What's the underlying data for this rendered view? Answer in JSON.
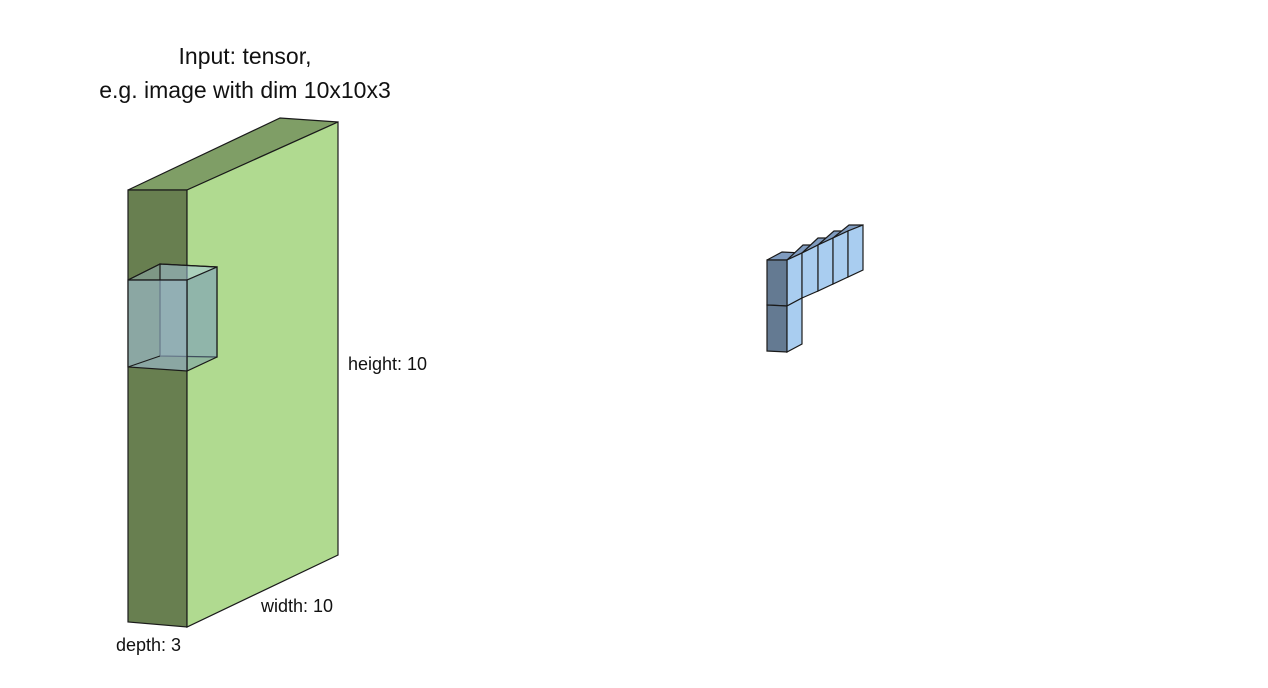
{
  "title": {
    "line1": "Input: tensor,",
    "line2": "e.g. image with dim 10x10x3"
  },
  "labels": {
    "height": "height: 10",
    "width": "width: 10",
    "depth": "depth: 3"
  },
  "colors": {
    "tensor_front": "#b0da90",
    "tensor_side": "#687f50",
    "tensor_top": "#7f9e66",
    "filter_fill": "#a8c8e8",
    "output_front": "#a9cdf0",
    "output_side": "#647a92",
    "output_top": "#7f9bbf",
    "outline": "#1a1a1a"
  }
}
